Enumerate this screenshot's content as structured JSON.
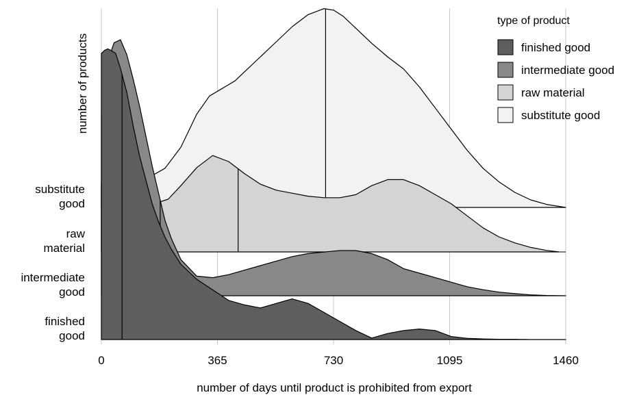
{
  "chart_data": {
    "type": "area",
    "subtype": "ridgeline",
    "xlabel": "number of days until product is prohibited from export",
    "ylabel": "number of products",
    "xlim": [
      0,
      1460
    ],
    "x_ticks": [
      0,
      365,
      730,
      1095,
      1460
    ],
    "grid": {
      "vertical": true,
      "horizontal": false
    },
    "categories": [
      "finished\ngood",
      "intermediate\ngood",
      "raw\nmaterial",
      "substitute\ngood"
    ],
    "legend": {
      "title": "type of product",
      "position": "top-right",
      "entries": [
        "finished good",
        "intermediate good",
        "raw material",
        "substitute good"
      ]
    },
    "series": [
      {
        "name": "finished good",
        "color": "#5e5e5e",
        "median": 65,
        "density": {
          "x": [
            0,
            10,
            20,
            30,
            45,
            60,
            80,
            100,
            120,
            140,
            160,
            180,
            200,
            220,
            250,
            300,
            350,
            400,
            450,
            500,
            550,
            600,
            650,
            700,
            750,
            800,
            850,
            900,
            950,
            1000,
            1050,
            1100,
            1150,
            1200,
            1250,
            1300,
            1350,
            1400,
            1460
          ],
          "y": [
            0.95,
            0.96,
            0.965,
            0.96,
            0.95,
            0.9,
            0.82,
            0.71,
            0.61,
            0.53,
            0.45,
            0.39,
            0.34,
            0.3,
            0.25,
            0.2,
            0.165,
            0.13,
            0.115,
            0.105,
            0.12,
            0.135,
            0.12,
            0.09,
            0.06,
            0.03,
            0.005,
            0.02,
            0.03,
            0.035,
            0.03,
            0.01,
            0.004,
            0.002,
            0.001,
            0.001,
            0,
            0,
            0
          ]
        }
      },
      {
        "name": "intermediate good",
        "color": "#888888",
        "median": 185,
        "density": {
          "x": [
            0,
            20,
            40,
            60,
            80,
            100,
            120,
            140,
            160,
            180,
            200,
            220,
            250,
            300,
            350,
            400,
            450,
            500,
            550,
            600,
            650,
            700,
            750,
            800,
            850,
            900,
            950,
            1000,
            1050,
            1100,
            1150,
            1200,
            1250,
            1300,
            1350,
            1400,
            1460
          ],
          "y": [
            0.6,
            0.78,
            0.84,
            0.85,
            0.8,
            0.72,
            0.63,
            0.53,
            0.43,
            0.34,
            0.25,
            0.19,
            0.12,
            0.065,
            0.06,
            0.07,
            0.085,
            0.1,
            0.115,
            0.13,
            0.14,
            0.145,
            0.15,
            0.15,
            0.14,
            0.12,
            0.09,
            0.075,
            0.06,
            0.045,
            0.03,
            0.02,
            0.012,
            0.007,
            0.003,
            0.001,
            0
          ]
        }
      },
      {
        "name": "raw material",
        "color": "#d4d4d4",
        "median": 430,
        "density": {
          "x": [
            0,
            30,
            60,
            90,
            120,
            150,
            180,
            210,
            250,
            300,
            350,
            400,
            450,
            500,
            550,
            600,
            650,
            700,
            750,
            800,
            850,
            900,
            950,
            1000,
            1050,
            1100,
            1150,
            1200,
            1250,
            1300,
            1350,
            1400,
            1440
          ],
          "y": [
            0.23,
            0.25,
            0.255,
            0.24,
            0.21,
            0.175,
            0.165,
            0.175,
            0.22,
            0.28,
            0.32,
            0.3,
            0.26,
            0.225,
            0.205,
            0.195,
            0.185,
            0.18,
            0.18,
            0.19,
            0.22,
            0.24,
            0.24,
            0.22,
            0.19,
            0.16,
            0.12,
            0.08,
            0.05,
            0.03,
            0.015,
            0.005,
            0
          ]
        }
      },
      {
        "name": "substitute good",
        "color": "#f2f2f2",
        "median": 705,
        "density": {
          "x": [
            0,
            50,
            100,
            150,
            200,
            250,
            300,
            340,
            380,
            420,
            460,
            500,
            550,
            600,
            650,
            700,
            730,
            760,
            800,
            850,
            900,
            950,
            1000,
            1050,
            1100,
            1150,
            1200,
            1250,
            1300,
            1350,
            1400,
            1460
          ],
          "y": [
            0.075,
            0.08,
            0.085,
            0.1,
            0.13,
            0.2,
            0.31,
            0.37,
            0.395,
            0.42,
            0.46,
            0.5,
            0.55,
            0.6,
            0.64,
            0.66,
            0.655,
            0.635,
            0.595,
            0.545,
            0.5,
            0.46,
            0.4,
            0.33,
            0.26,
            0.19,
            0.13,
            0.085,
            0.05,
            0.025,
            0.01,
            0
          ]
        }
      }
    ]
  }
}
